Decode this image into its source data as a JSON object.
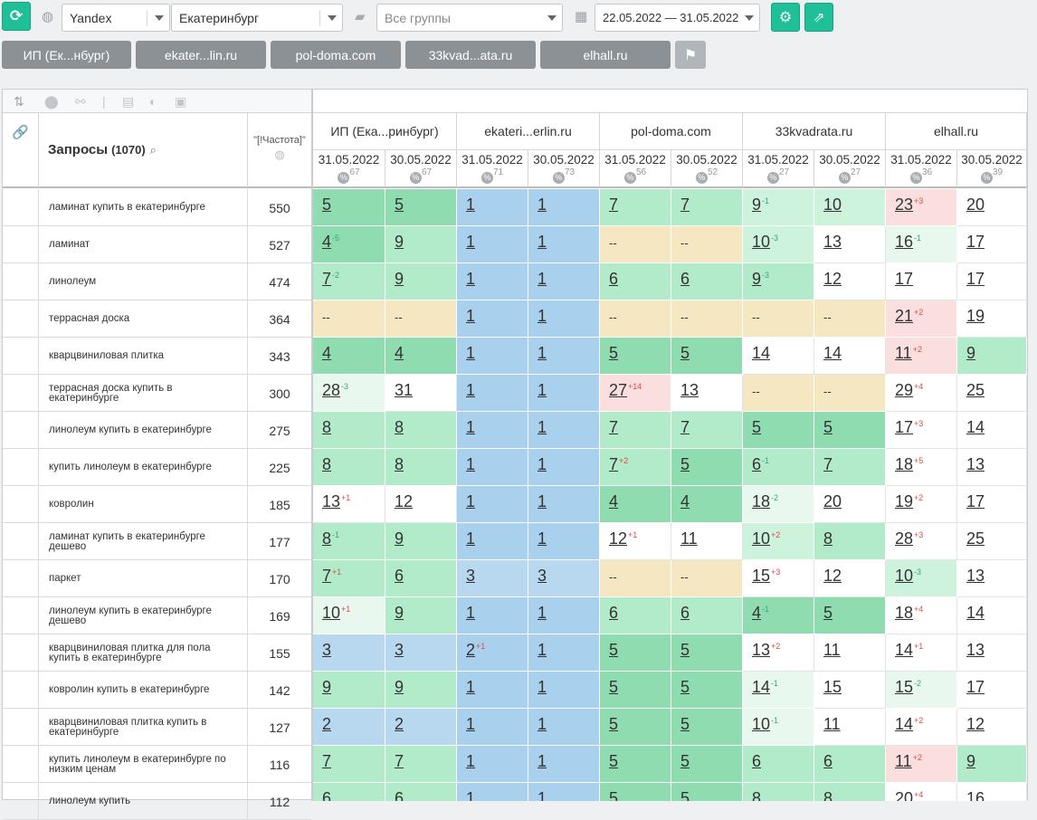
{
  "toolbar": {
    "refresh_icon": "refresh-icon",
    "engine": "Yandex",
    "region": "Екатеринбург",
    "group": "Все группы",
    "date_range": "22.05.2022 — 31.05.2022",
    "settings_icon": "gear-icon",
    "export_icon": "export-icon"
  },
  "tabs": [
    "ИП (Ек...нбург)",
    "ekater...lin.ru",
    "pol-doma.com",
    "33kvad...ata.ru",
    "elhall.ru"
  ],
  "table": {
    "queries_label": "Запросы",
    "queries_count": "(1070)",
    "freq_label": "\"[!Частота]\"",
    "sites": [
      {
        "name": "ИП (Ека...ринбург)",
        "dates": [
          {
            "date": "31.05.2022",
            "pct": "67"
          },
          {
            "date": "30.05.2022",
            "pct": "67"
          }
        ]
      },
      {
        "name": "ekateri...erlin.ru",
        "dates": [
          {
            "date": "31.05.2022",
            "pct": "71"
          },
          {
            "date": "30.05.2022",
            "pct": "73"
          }
        ]
      },
      {
        "name": "pol-doma.com",
        "dates": [
          {
            "date": "31.05.2022",
            "pct": "56"
          },
          {
            "date": "30.05.2022",
            "pct": "52"
          }
        ]
      },
      {
        "name": "33kvadrata.ru",
        "dates": [
          {
            "date": "31.05.2022",
            "pct": "27"
          },
          {
            "date": "30.05.2022",
            "pct": "27"
          }
        ]
      },
      {
        "name": "elhall.ru",
        "dates": [
          {
            "date": "31.05.2022",
            "pct": "36"
          },
          {
            "date": "30.05.2022",
            "pct": "39"
          }
        ]
      }
    ],
    "rows": [
      {
        "q": "ламинат купить в екатеринбурге",
        "f": "550",
        "c": [
          [
            "5",
            "",
            "g2"
          ],
          [
            "5",
            "",
            "g2"
          ],
          [
            "1",
            "",
            "b"
          ],
          [
            "1",
            "",
            "b"
          ],
          [
            "7",
            "",
            "g1"
          ],
          [
            "7",
            "",
            "g1"
          ],
          [
            "9",
            "-1",
            "g0"
          ],
          [
            "10",
            "",
            "g0"
          ],
          [
            "23",
            "+3",
            "r"
          ],
          [
            "20",
            "",
            "w"
          ]
        ]
      },
      {
        "q": "ламинат",
        "f": "527",
        "c": [
          [
            "4",
            "-5",
            "g2"
          ],
          [
            "9",
            "",
            "g1"
          ],
          [
            "1",
            "",
            "b"
          ],
          [
            "1",
            "",
            "b"
          ],
          [
            "--",
            "",
            "y"
          ],
          [
            "--",
            "",
            "y"
          ],
          [
            "10",
            "-3",
            "g0"
          ],
          [
            "13",
            "",
            "w"
          ],
          [
            "16",
            "-1",
            "g0l"
          ],
          [
            "17",
            "",
            "w"
          ]
        ]
      },
      {
        "q": "линолеум",
        "f": "474",
        "c": [
          [
            "7",
            "-2",
            "g1"
          ],
          [
            "9",
            "",
            "g1"
          ],
          [
            "1",
            "",
            "b"
          ],
          [
            "1",
            "",
            "b"
          ],
          [
            "6",
            "",
            "g1"
          ],
          [
            "6",
            "",
            "g1"
          ],
          [
            "9",
            "-3",
            "g1"
          ],
          [
            "12",
            "",
            "w"
          ],
          [
            "17",
            "",
            "w"
          ],
          [
            "17",
            "",
            "w"
          ]
        ]
      },
      {
        "q": "террасная доска",
        "f": "364",
        "c": [
          [
            "--",
            "",
            "y"
          ],
          [
            "--",
            "",
            "y"
          ],
          [
            "1",
            "",
            "b"
          ],
          [
            "1",
            "",
            "b"
          ],
          [
            "--",
            "",
            "y"
          ],
          [
            "--",
            "",
            "y"
          ],
          [
            "--",
            "",
            "y"
          ],
          [
            "--",
            "",
            "y"
          ],
          [
            "21",
            "+2",
            "r"
          ],
          [
            "19",
            "",
            "w"
          ]
        ]
      },
      {
        "q": "кварцвиниловая плитка",
        "f": "343",
        "c": [
          [
            "4",
            "",
            "g2"
          ],
          [
            "4",
            "",
            "g2"
          ],
          [
            "1",
            "",
            "b"
          ],
          [
            "1",
            "",
            "b"
          ],
          [
            "5",
            "",
            "g2"
          ],
          [
            "5",
            "",
            "g2"
          ],
          [
            "14",
            "",
            "w"
          ],
          [
            "14",
            "",
            "w"
          ],
          [
            "11",
            "+2",
            "r"
          ],
          [
            "9",
            "",
            "g1"
          ]
        ]
      },
      {
        "q": "террасная доска купить в екатеринбурге",
        "f": "300",
        "c": [
          [
            "28",
            "-3",
            "g0l"
          ],
          [
            "31",
            "",
            "w"
          ],
          [
            "1",
            "",
            "b"
          ],
          [
            "1",
            "",
            "b"
          ],
          [
            "27",
            "+14",
            "r"
          ],
          [
            "13",
            "",
            "w"
          ],
          [
            "--",
            "",
            "y"
          ],
          [
            "--",
            "",
            "y"
          ],
          [
            "29",
            "+4",
            "w"
          ],
          [
            "25",
            "",
            "w"
          ]
        ]
      },
      {
        "q": "линолеум купить в екатеринбурге",
        "f": "275",
        "c": [
          [
            "8",
            "",
            "g1"
          ],
          [
            "8",
            "",
            "g1"
          ],
          [
            "1",
            "",
            "b"
          ],
          [
            "1",
            "",
            "b"
          ],
          [
            "7",
            "",
            "g1"
          ],
          [
            "7",
            "",
            "g1"
          ],
          [
            "5",
            "",
            "g2"
          ],
          [
            "5",
            "",
            "g2"
          ],
          [
            "17",
            "+3",
            "w"
          ],
          [
            "14",
            "",
            "w"
          ]
        ]
      },
      {
        "q": "купить линолеум в екатеринбурге",
        "f": "225",
        "c": [
          [
            "8",
            "",
            "g1"
          ],
          [
            "8",
            "",
            "g1"
          ],
          [
            "1",
            "",
            "b"
          ],
          [
            "1",
            "",
            "b"
          ],
          [
            "7",
            "+2",
            "g1"
          ],
          [
            "5",
            "",
            "g2"
          ],
          [
            "6",
            "-1",
            "g1"
          ],
          [
            "7",
            "",
            "g1"
          ],
          [
            "18",
            "+5",
            "w"
          ],
          [
            "13",
            "",
            "w"
          ]
        ]
      },
      {
        "q": "ковролин",
        "f": "185",
        "c": [
          [
            "13",
            "+1",
            "w"
          ],
          [
            "12",
            "",
            "w"
          ],
          [
            "1",
            "",
            "b"
          ],
          [
            "1",
            "",
            "b"
          ],
          [
            "4",
            "",
            "g2"
          ],
          [
            "4",
            "",
            "g2"
          ],
          [
            "18",
            "-2",
            "g0l"
          ],
          [
            "20",
            "",
            "w"
          ],
          [
            "19",
            "+2",
            "w"
          ],
          [
            "17",
            "",
            "w"
          ]
        ]
      },
      {
        "q": "ламинат купить в екатеринбурге дешево",
        "f": "177",
        "c": [
          [
            "8",
            "-1",
            "g1"
          ],
          [
            "9",
            "",
            "g1"
          ],
          [
            "1",
            "",
            "b"
          ],
          [
            "1",
            "",
            "b"
          ],
          [
            "12",
            "+1",
            "w"
          ],
          [
            "11",
            "",
            "w"
          ],
          [
            "10",
            "+2",
            "g0"
          ],
          [
            "8",
            "",
            "g1"
          ],
          [
            "28",
            "+3",
            "w"
          ],
          [
            "25",
            "",
            "w"
          ]
        ]
      },
      {
        "q": "паркет",
        "f": "170",
        "c": [
          [
            "7",
            "+1",
            "g1"
          ],
          [
            "6",
            "",
            "g1"
          ],
          [
            "3",
            "",
            "bl"
          ],
          [
            "3",
            "",
            "bl"
          ],
          [
            "--",
            "",
            "y"
          ],
          [
            "--",
            "",
            "y"
          ],
          [
            "15",
            "+3",
            "w"
          ],
          [
            "12",
            "",
            "w"
          ],
          [
            "10",
            "-3",
            "g0"
          ],
          [
            "13",
            "",
            "w"
          ]
        ]
      },
      {
        "q": "линолеум купить в екатеринбурге дешево",
        "f": "169",
        "c": [
          [
            "10",
            "+1",
            "g0l"
          ],
          [
            "9",
            "",
            "g1"
          ],
          [
            "1",
            "",
            "b"
          ],
          [
            "1",
            "",
            "b"
          ],
          [
            "6",
            "",
            "g1"
          ],
          [
            "6",
            "",
            "g1"
          ],
          [
            "4",
            "-1",
            "g2"
          ],
          [
            "5",
            "",
            "g2"
          ],
          [
            "18",
            "+4",
            "w"
          ],
          [
            "14",
            "",
            "w"
          ]
        ]
      },
      {
        "q": "кварцвиниловая плитка для пола купить в екатеринбурге",
        "f": "155",
        "c": [
          [
            "3",
            "",
            "bl"
          ],
          [
            "3",
            "",
            "bl"
          ],
          [
            "2",
            "+1",
            "b"
          ],
          [
            "1",
            "",
            "b"
          ],
          [
            "5",
            "",
            "g2"
          ],
          [
            "5",
            "",
            "g2"
          ],
          [
            "13",
            "+2",
            "w"
          ],
          [
            "11",
            "",
            "w"
          ],
          [
            "14",
            "+1",
            "w"
          ],
          [
            "13",
            "",
            "w"
          ]
        ]
      },
      {
        "q": "ковролин купить в екатеринбурге",
        "f": "142",
        "c": [
          [
            "9",
            "",
            "g1"
          ],
          [
            "9",
            "",
            "g1"
          ],
          [
            "1",
            "",
            "b"
          ],
          [
            "1",
            "",
            "b"
          ],
          [
            "5",
            "",
            "g2"
          ],
          [
            "5",
            "",
            "g2"
          ],
          [
            "14",
            "-1",
            "g0l"
          ],
          [
            "15",
            "",
            "w"
          ],
          [
            "15",
            "-2",
            "g0l"
          ],
          [
            "17",
            "",
            "w"
          ]
        ]
      },
      {
        "q": "кварцвиниловая плитка купить в екатеринбурге",
        "f": "127",
        "c": [
          [
            "2",
            "",
            "bl"
          ],
          [
            "2",
            "",
            "bl"
          ],
          [
            "1",
            "",
            "b"
          ],
          [
            "1",
            "",
            "b"
          ],
          [
            "5",
            "",
            "g2"
          ],
          [
            "5",
            "",
            "g2"
          ],
          [
            "10",
            "-1",
            "g0l"
          ],
          [
            "11",
            "",
            "w"
          ],
          [
            "14",
            "+2",
            "w"
          ],
          [
            "12",
            "",
            "w"
          ]
        ]
      },
      {
        "q": "купить линолеум в екатеринбурге по низким ценам",
        "f": "116",
        "c": [
          [
            "7",
            "",
            "g1"
          ],
          [
            "7",
            "",
            "g1"
          ],
          [
            "1",
            "",
            "b"
          ],
          [
            "1",
            "",
            "b"
          ],
          [
            "5",
            "",
            "g2"
          ],
          [
            "5",
            "",
            "g2"
          ],
          [
            "6",
            "",
            "g1"
          ],
          [
            "6",
            "",
            "g1"
          ],
          [
            "11",
            "+2",
            "r"
          ],
          [
            "9",
            "",
            "g1"
          ]
        ]
      },
      {
        "q": "линолеум купить",
        "f": "112",
        "c": [
          [
            "6",
            "",
            "g1"
          ],
          [
            "6",
            "",
            "g1"
          ],
          [
            "1",
            "",
            "b"
          ],
          [
            "1",
            "",
            "b"
          ],
          [
            "5",
            "",
            "g2"
          ],
          [
            "5",
            "",
            "g2"
          ],
          [
            "8",
            "",
            "g1"
          ],
          [
            "8",
            "",
            "g1"
          ],
          [
            "20",
            "+4",
            "w"
          ],
          [
            "16",
            "",
            "w"
          ]
        ]
      }
    ]
  },
  "colors": {
    "g2": "#8fdcb0",
    "g1": "#b2ebc9",
    "g0": "#cdf3dc",
    "g0l": "#e8f8ee",
    "b": "#a9d0ec",
    "bl": "#b7d8ef",
    "y": "#f5e7c2",
    "r": "#fbdede",
    "w": "#ffffff",
    "accent": "#1fbf98"
  }
}
